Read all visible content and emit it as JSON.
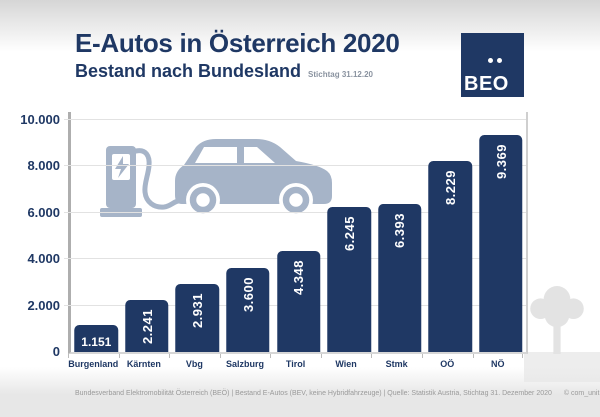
{
  "header": {
    "title": "E-Autos in Österreich 2020",
    "subtitle": "Bestand nach Bundesland",
    "date_note": "Stichtag 31.12.20",
    "logo_text": "BEO"
  },
  "chart_data": {
    "type": "bar",
    "title": "E-Autos in Österreich 2020 – Bestand nach Bundesland, Stichtag 31.12.20",
    "categories": [
      "Burgenland",
      "Kärnten",
      "Vbg",
      "Salzburg",
      "Tirol",
      "Wien",
      "Stmk",
      "OÖ",
      "NÖ"
    ],
    "values": [
      1151,
      2241,
      2931,
      3600,
      4348,
      6245,
      6393,
      8229,
      9369
    ],
    "value_labels": [
      "1.151",
      "2.241",
      "2.931",
      "3.600",
      "4.348",
      "6.245",
      "6.393",
      "8.229",
      "9.369"
    ],
    "y_tick_values": [
      0,
      2000,
      4000,
      6000,
      8000,
      10000
    ],
    "y_tick_labels": [
      "0",
      "2.000",
      "4.000",
      "6.000",
      "8.000",
      "10.000"
    ],
    "ylim": [
      0,
      10000
    ],
    "xlabel": "",
    "ylabel": "",
    "grid": true,
    "legend": false,
    "bar_color": "#1f3864",
    "value_label_color": "#ffffff"
  },
  "footer": {
    "source_line": "Bundesverband Elektromobilität Österreich (BEÖ) | Bestand E-Autos (BEV, keine Hybridfahrzeuge) | Quelle: Statistik Austria, Stichtag 31. Dezember 2020",
    "credit": "© com_unit"
  },
  "colors": {
    "navy": "#1f3864",
    "icon_blue": "#a6b4c8",
    "tree_gray": "#e3e3e3",
    "white": "#ffffff"
  }
}
